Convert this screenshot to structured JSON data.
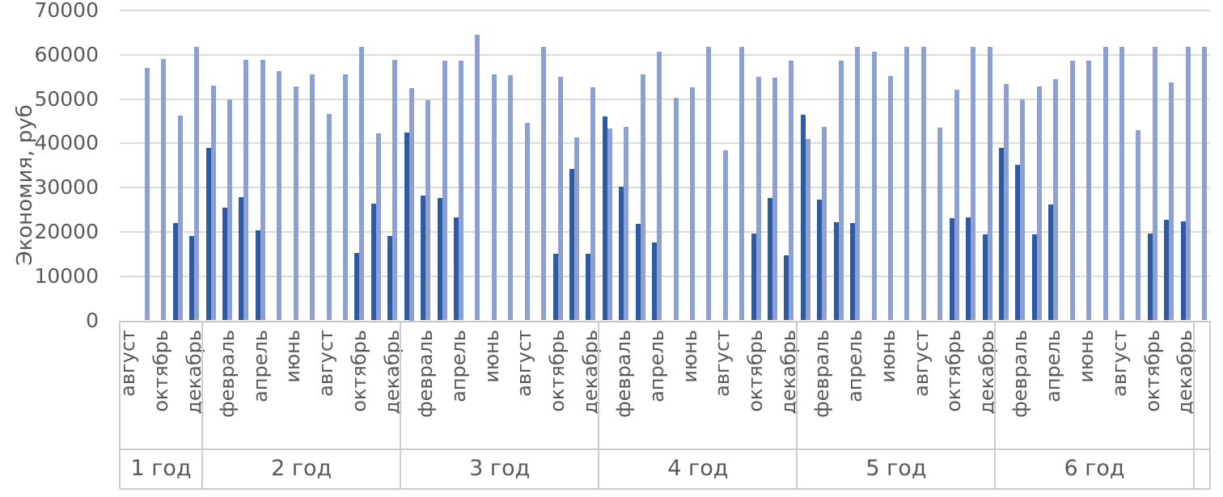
{
  "chart_data": {
    "type": "bar",
    "title": "",
    "ylabel": "Экономия, руб",
    "ylim": [
      0,
      70000
    ],
    "ytick_step": 10000,
    "yticks": [
      0,
      10000,
      20000,
      30000,
      40000,
      50000,
      60000,
      70000
    ],
    "grid": "horizontal",
    "legend": "none",
    "series": [
      {
        "name": "dark-blue-series",
        "color": "#2E5AA5"
      },
      {
        "name": "light-blue-series",
        "color": "#8EA0D1"
      }
    ],
    "years": [
      {
        "label": "1 год",
        "months": [
          {
            "label": "август",
            "dark": null,
            "light": null
          },
          {
            "label": "",
            "dark": null,
            "light": 57000
          },
          {
            "label": "октябрь",
            "dark": null,
            "light": 59000
          },
          {
            "label": "",
            "dark": 22000,
            "light": 46300
          },
          {
            "label": "декабрь",
            "dark": 19000,
            "light": 61700
          }
        ]
      },
      {
        "label": "2 год",
        "months": [
          {
            "label": "",
            "dark": 39000,
            "light": 53000
          },
          {
            "label": "февраль",
            "dark": 25500,
            "light": 50000
          },
          {
            "label": "",
            "dark": 27800,
            "light": 58800
          },
          {
            "label": "апрель",
            "dark": 20300,
            "light": 58800
          },
          {
            "label": "",
            "dark": null,
            "light": 56400
          },
          {
            "label": "июнь",
            "dark": null,
            "light": 52800
          },
          {
            "label": "",
            "dark": null,
            "light": 55500
          },
          {
            "label": "август",
            "dark": null,
            "light": 46700
          },
          {
            "label": "",
            "dark": null,
            "light": 55500
          },
          {
            "label": "октябрь",
            "dark": 15300,
            "light": 61700
          },
          {
            "label": "",
            "dark": 26400,
            "light": 42300
          },
          {
            "label": "декабрь",
            "dark": 19100,
            "light": 58800
          }
        ]
      },
      {
        "label": "3 год",
        "months": [
          {
            "label": "",
            "dark": 42500,
            "light": 52500
          },
          {
            "label": "февраль",
            "dark": 28200,
            "light": 49800
          },
          {
            "label": "",
            "dark": 27600,
            "light": 58600
          },
          {
            "label": "апрель",
            "dark": 23300,
            "light": 58600
          },
          {
            "label": "",
            "dark": null,
            "light": 64500
          },
          {
            "label": "июнь",
            "dark": null,
            "light": 55500
          },
          {
            "label": "",
            "dark": null,
            "light": 55400
          },
          {
            "label": "август",
            "dark": null,
            "light": 44600
          },
          {
            "label": "",
            "dark": null,
            "light": 61700
          },
          {
            "label": "октябрь",
            "dark": 15000,
            "light": 55100
          },
          {
            "label": "",
            "dark": 34200,
            "light": 41400
          },
          {
            "label": "декабрь",
            "dark": 15100,
            "light": 52600
          }
        ]
      },
      {
        "label": "4 год",
        "months": [
          {
            "label": "",
            "dark": 46100,
            "light": 43300
          },
          {
            "label": "февраль",
            "dark": 30200,
            "light": 43800
          },
          {
            "label": "",
            "dark": 21900,
            "light": 55500
          },
          {
            "label": "апрель",
            "dark": 17700,
            "light": 60600
          },
          {
            "label": "",
            "dark": null,
            "light": 50200
          },
          {
            "label": "июнь",
            "dark": null,
            "light": 52600
          },
          {
            "label": "",
            "dark": null,
            "light": 61700
          },
          {
            "label": "август",
            "dark": null,
            "light": 38400
          },
          {
            "label": "",
            "dark": null,
            "light": 61700
          },
          {
            "label": "октябрь",
            "dark": 19600,
            "light": 55000
          },
          {
            "label": "",
            "dark": 27700,
            "light": 54800
          },
          {
            "label": "декабрь",
            "dark": 14700,
            "light": 58700
          }
        ]
      },
      {
        "label": "5 год",
        "months": [
          {
            "label": "",
            "dark": 46400,
            "light": 40900
          },
          {
            "label": "февраль",
            "dark": 27200,
            "light": 43800
          },
          {
            "label": "",
            "dark": 22100,
            "light": 58700
          },
          {
            "label": "апрель",
            "dark": 22000,
            "light": 61700
          },
          {
            "label": "",
            "dark": null,
            "light": 60600
          },
          {
            "label": "июнь",
            "dark": null,
            "light": 55300
          },
          {
            "label": "",
            "dark": null,
            "light": 61700
          },
          {
            "label": "август",
            "dark": null,
            "light": 61700
          },
          {
            "label": "",
            "dark": null,
            "light": 43600
          },
          {
            "label": "октябрь",
            "dark": 23000,
            "light": 52100
          },
          {
            "label": "",
            "dark": 23200,
            "light": 61700
          },
          {
            "label": "декабрь",
            "dark": 19400,
            "light": 61700
          }
        ]
      },
      {
        "label": "6 год",
        "months": [
          {
            "label": "",
            "dark": 38900,
            "light": 53400
          },
          {
            "label": "февраль",
            "dark": 35100,
            "light": 49900
          },
          {
            "label": "",
            "dark": 19400,
            "light": 52900
          },
          {
            "label": "апрель",
            "dark": 26200,
            "light": 54500
          },
          {
            "label": "",
            "dark": null,
            "light": 58600
          },
          {
            "label": "июнь",
            "dark": null,
            "light": 58600
          },
          {
            "label": "",
            "dark": null,
            "light": 61700
          },
          {
            "label": "август",
            "dark": null,
            "light": 61700
          },
          {
            "label": "",
            "dark": null,
            "light": 43000
          },
          {
            "label": "октябрь",
            "dark": 19600,
            "light": 61700
          },
          {
            "label": "",
            "dark": 22800,
            "light": 53800
          },
          {
            "label": "декабрь",
            "dark": 22400,
            "light": 61700
          }
        ]
      },
      {
        "label": "",
        "months": [
          {
            "label": "",
            "dark": null,
            "light": 61700
          }
        ]
      }
    ]
  }
}
